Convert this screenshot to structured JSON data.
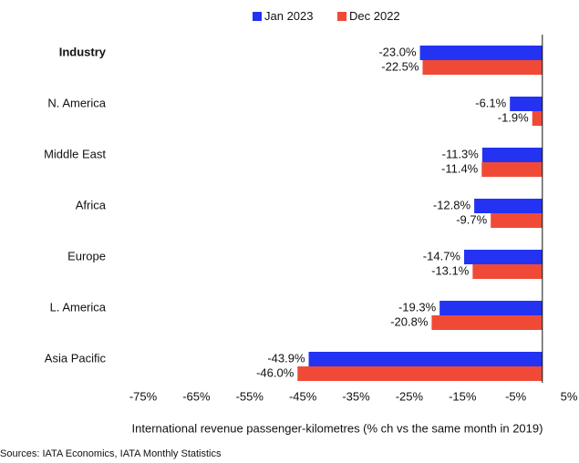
{
  "chart_data": {
    "type": "bar",
    "orientation": "horizontal",
    "categories": [
      "Industry",
      "N. America",
      "Middle East",
      "Africa",
      "Europe",
      "L. America",
      "Asia Pacific"
    ],
    "series": [
      {
        "name": "Jan 2023",
        "color": "#2433f2",
        "values": [
          -23.0,
          -6.1,
          -11.3,
          -12.8,
          -14.7,
          -19.3,
          -43.9
        ],
        "value_labels": [
          "-23.0%",
          "-6.1%",
          "-11.3%",
          "-12.8%",
          "-14.7%",
          "-19.3%",
          "-43.9%"
        ]
      },
      {
        "name": "Dec 2022",
        "color": "#f04a37",
        "values": [
          -22.5,
          -1.9,
          -11.4,
          -9.7,
          -13.1,
          -20.8,
          -46.0
        ],
        "value_labels": [
          "-22.5%",
          "-1.9%",
          "-11.4%",
          "-9.7%",
          "-13.1%",
          "-20.8%",
          "-46.0%"
        ]
      }
    ],
    "xlim": [
      -75,
      5
    ],
    "xticks": [
      {
        "value": -75,
        "label": "-75%"
      },
      {
        "value": -65,
        "label": "-65%"
      },
      {
        "value": -55,
        "label": "-55%"
      },
      {
        "value": -45,
        "label": "-45%"
      },
      {
        "value": -35,
        "label": "-35%"
      },
      {
        "value": -25,
        "label": "-25%"
      },
      {
        "value": -15,
        "label": "-15%"
      },
      {
        "value": -5,
        "label": "-5%"
      },
      {
        "value": 5,
        "label": "5%"
      }
    ],
    "xlabel": "International revenue passenger-kilometres (% ch vs the same month in 2019)",
    "source": "Sources: IATA Economics, IATA Monthly Statistics",
    "legend": "top",
    "grid": false
  }
}
